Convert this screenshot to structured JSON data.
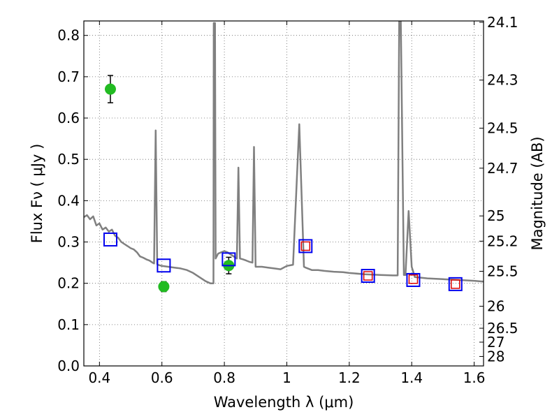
{
  "chart_data": {
    "type": "scatter",
    "xlabel": "Wavelength  λ (μm)",
    "ylabel": "Flux  Fν  ( μJy )",
    "ylabel_right": "Magnitude (AB)",
    "xlim": [
      0.35,
      1.63
    ],
    "ylim": [
      0.0,
      0.835
    ],
    "grid": true,
    "x_ticks": [
      0.4,
      0.6,
      0.8,
      1.0,
      1.2,
      1.4,
      1.6
    ],
    "x_tick_labels": [
      "0.4",
      "0.6",
      "0.8",
      "1",
      "1.2",
      "1.4",
      "1.6"
    ],
    "y_ticks": [
      0.0,
      0.1,
      0.2,
      0.3,
      0.4,
      0.5,
      0.6,
      0.7,
      0.8
    ],
    "y_tick_labels": [
      "0.0",
      "0.1",
      "0.2",
      "0.3",
      "0.4",
      "0.5",
      "0.6",
      "0.7",
      "0.8"
    ],
    "mag_ticks": [
      "24.1",
      "24.3",
      "24.5",
      "24.7",
      "25",
      "25.2",
      "25.5",
      "26",
      "26.5",
      "27",
      "28"
    ],
    "series": [
      {
        "kind": "line",
        "color": "#808080",
        "points": [
          [
            0.35,
            0.36
          ],
          [
            0.36,
            0.365
          ],
          [
            0.37,
            0.355
          ],
          [
            0.38,
            0.362
          ],
          [
            0.39,
            0.34
          ],
          [
            0.4,
            0.345
          ],
          [
            0.41,
            0.33
          ],
          [
            0.42,
            0.335
          ],
          [
            0.43,
            0.325
          ],
          [
            0.44,
            0.33
          ],
          [
            0.45,
            0.315
          ],
          [
            0.46,
            0.31
          ],
          [
            0.47,
            0.3
          ],
          [
            0.48,
            0.295
          ],
          [
            0.49,
            0.29
          ],
          [
            0.5,
            0.285
          ],
          [
            0.51,
            0.282
          ],
          [
            0.52,
            0.275
          ],
          [
            0.53,
            0.265
          ],
          [
            0.54,
            0.262
          ],
          [
            0.55,
            0.258
          ],
          [
            0.56,
            0.255
          ],
          [
            0.57,
            0.25
          ],
          [
            0.575,
            0.248
          ],
          [
            0.58,
            0.57
          ],
          [
            0.585,
            0.246
          ],
          [
            0.59,
            0.244
          ],
          [
            0.6,
            0.242
          ],
          [
            0.62,
            0.24
          ],
          [
            0.64,
            0.238
          ],
          [
            0.66,
            0.236
          ],
          [
            0.68,
            0.232
          ],
          [
            0.7,
            0.225
          ],
          [
            0.72,
            0.215
          ],
          [
            0.74,
            0.205
          ],
          [
            0.755,
            0.2
          ],
          [
            0.765,
            0.2
          ],
          [
            0.766,
            0.83
          ],
          [
            0.77,
            0.83
          ],
          [
            0.772,
            0.26
          ],
          [
            0.78,
            0.272
          ],
          [
            0.79,
            0.275
          ],
          [
            0.8,
            0.278
          ],
          [
            0.81,
            0.275
          ],
          [
            0.82,
            0.27
          ],
          [
            0.83,
            0.265
          ],
          [
            0.84,
            0.26
          ],
          [
            0.845,
            0.48
          ],
          [
            0.85,
            0.26
          ],
          [
            0.86,
            0.258
          ],
          [
            0.87,
            0.255
          ],
          [
            0.88,
            0.252
          ],
          [
            0.89,
            0.25
          ],
          [
            0.895,
            0.53
          ],
          [
            0.9,
            0.24
          ],
          [
            0.92,
            0.24
          ],
          [
            0.94,
            0.238
          ],
          [
            0.96,
            0.236
          ],
          [
            0.98,
            0.234
          ],
          [
            1.0,
            0.242
          ],
          [
            1.02,
            0.245
          ],
          [
            1.04,
            0.585
          ],
          [
            1.055,
            0.24
          ],
          [
            1.06,
            0.238
          ],
          [
            1.08,
            0.232
          ],
          [
            1.1,
            0.232
          ],
          [
            1.12,
            0.23
          ],
          [
            1.15,
            0.228
          ],
          [
            1.18,
            0.227
          ],
          [
            1.2,
            0.225
          ],
          [
            1.25,
            0.222
          ],
          [
            1.3,
            0.22
          ],
          [
            1.34,
            0.219
          ],
          [
            1.355,
            0.219
          ],
          [
            1.36,
            0.835
          ],
          [
            1.365,
            0.835
          ],
          [
            1.375,
            0.22
          ],
          [
            1.38,
            0.22
          ],
          [
            1.39,
            0.375
          ],
          [
            1.4,
            0.24
          ],
          [
            1.41,
            0.215
          ],
          [
            1.45,
            0.212
          ],
          [
            1.5,
            0.21
          ],
          [
            1.55,
            0.208
          ],
          [
            1.6,
            0.206
          ],
          [
            1.63,
            0.204
          ]
        ]
      },
      {
        "kind": "errorbar",
        "color": "#22bb22",
        "points": [
          {
            "x": 0.435,
            "y": 0.67,
            "err": 0.033
          },
          {
            "x": 0.606,
            "y": 0.192,
            "err": 0.012
          },
          {
            "x": 0.814,
            "y": 0.243,
            "err": 0.02
          }
        ]
      },
      {
        "kind": "open-square",
        "color": "#0000ee",
        "points": [
          [
            0.435,
            0.306
          ],
          [
            0.606,
            0.243
          ],
          [
            0.814,
            0.258
          ],
          [
            1.06,
            0.29
          ],
          [
            1.26,
            0.218
          ],
          [
            1.405,
            0.208
          ],
          [
            1.54,
            0.198
          ]
        ]
      },
      {
        "kind": "open-square-small",
        "color": "#dd0000",
        "points": [
          [
            1.06,
            0.29
          ],
          [
            1.26,
            0.218
          ],
          [
            1.405,
            0.21
          ],
          [
            1.54,
            0.198
          ]
        ]
      }
    ]
  }
}
